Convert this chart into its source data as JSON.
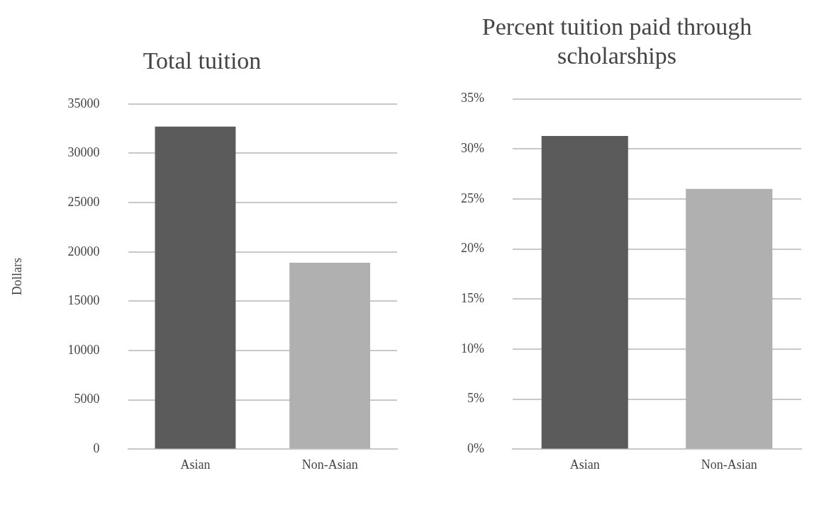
{
  "chart_data": [
    {
      "type": "bar",
      "title": "Total tuition",
      "ylabel": "Dollars",
      "categories": [
        "Asian",
        "Non-Asian"
      ],
      "values": [
        32700,
        18900
      ],
      "colors": [
        "#5b5b5b",
        "#b0b0b0"
      ],
      "ylim": [
        0,
        35000
      ],
      "yticks": [
        0,
        5000,
        10000,
        15000,
        20000,
        25000,
        30000,
        35000
      ],
      "grid": "y"
    },
    {
      "type": "bar",
      "title": "Percent tuition paid through scholarships",
      "categories": [
        "Asian",
        "Non-Asian"
      ],
      "values": [
        31.3,
        26.0
      ],
      "colors": [
        "#5b5b5b",
        "#b0b0b0"
      ],
      "ylim": [
        0,
        35
      ],
      "yticks": [
        {
          "value": 0,
          "label": "0%"
        },
        {
          "value": 5,
          "label": "5%"
        },
        {
          "value": 10,
          "label": "10%"
        },
        {
          "value": 15,
          "label": "15%"
        },
        {
          "value": 20,
          "label": "20%"
        },
        {
          "value": 25,
          "label": "25%"
        },
        {
          "value": 30,
          "label": "30%"
        },
        {
          "value": 35,
          "label": "35%"
        }
      ],
      "grid": "y"
    }
  ]
}
